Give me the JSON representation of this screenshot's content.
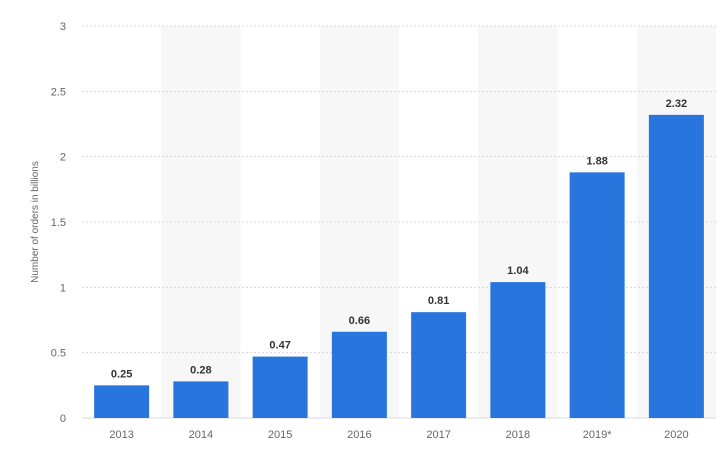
{
  "chart_data": {
    "type": "bar",
    "title": "",
    "xlabel": "",
    "ylabel": "Number of orders in billions",
    "categories": [
      "2013",
      "2014",
      "2015",
      "2016",
      "2017",
      "2018",
      "2019*",
      "2020"
    ],
    "values": [
      0.25,
      0.28,
      0.47,
      0.66,
      0.81,
      1.04,
      1.88,
      2.32
    ],
    "value_labels": [
      "0.25",
      "0.28",
      "0.47",
      "0.66",
      "0.81",
      "1.04",
      "1.88",
      "2.32"
    ],
    "ylim": [
      0,
      3
    ],
    "yticks": [
      0,
      0.5,
      1,
      1.5,
      2,
      2.5,
      3
    ],
    "ytick_labels": [
      "0",
      "0.5",
      "1",
      "1.5",
      "2",
      "2.5",
      "3"
    ],
    "grid": true,
    "alternating_column_shading": true,
    "bar_color": "#2876dd",
    "shade_color": "#f7f7f7",
    "grid_color": "#d8d8d8"
  }
}
